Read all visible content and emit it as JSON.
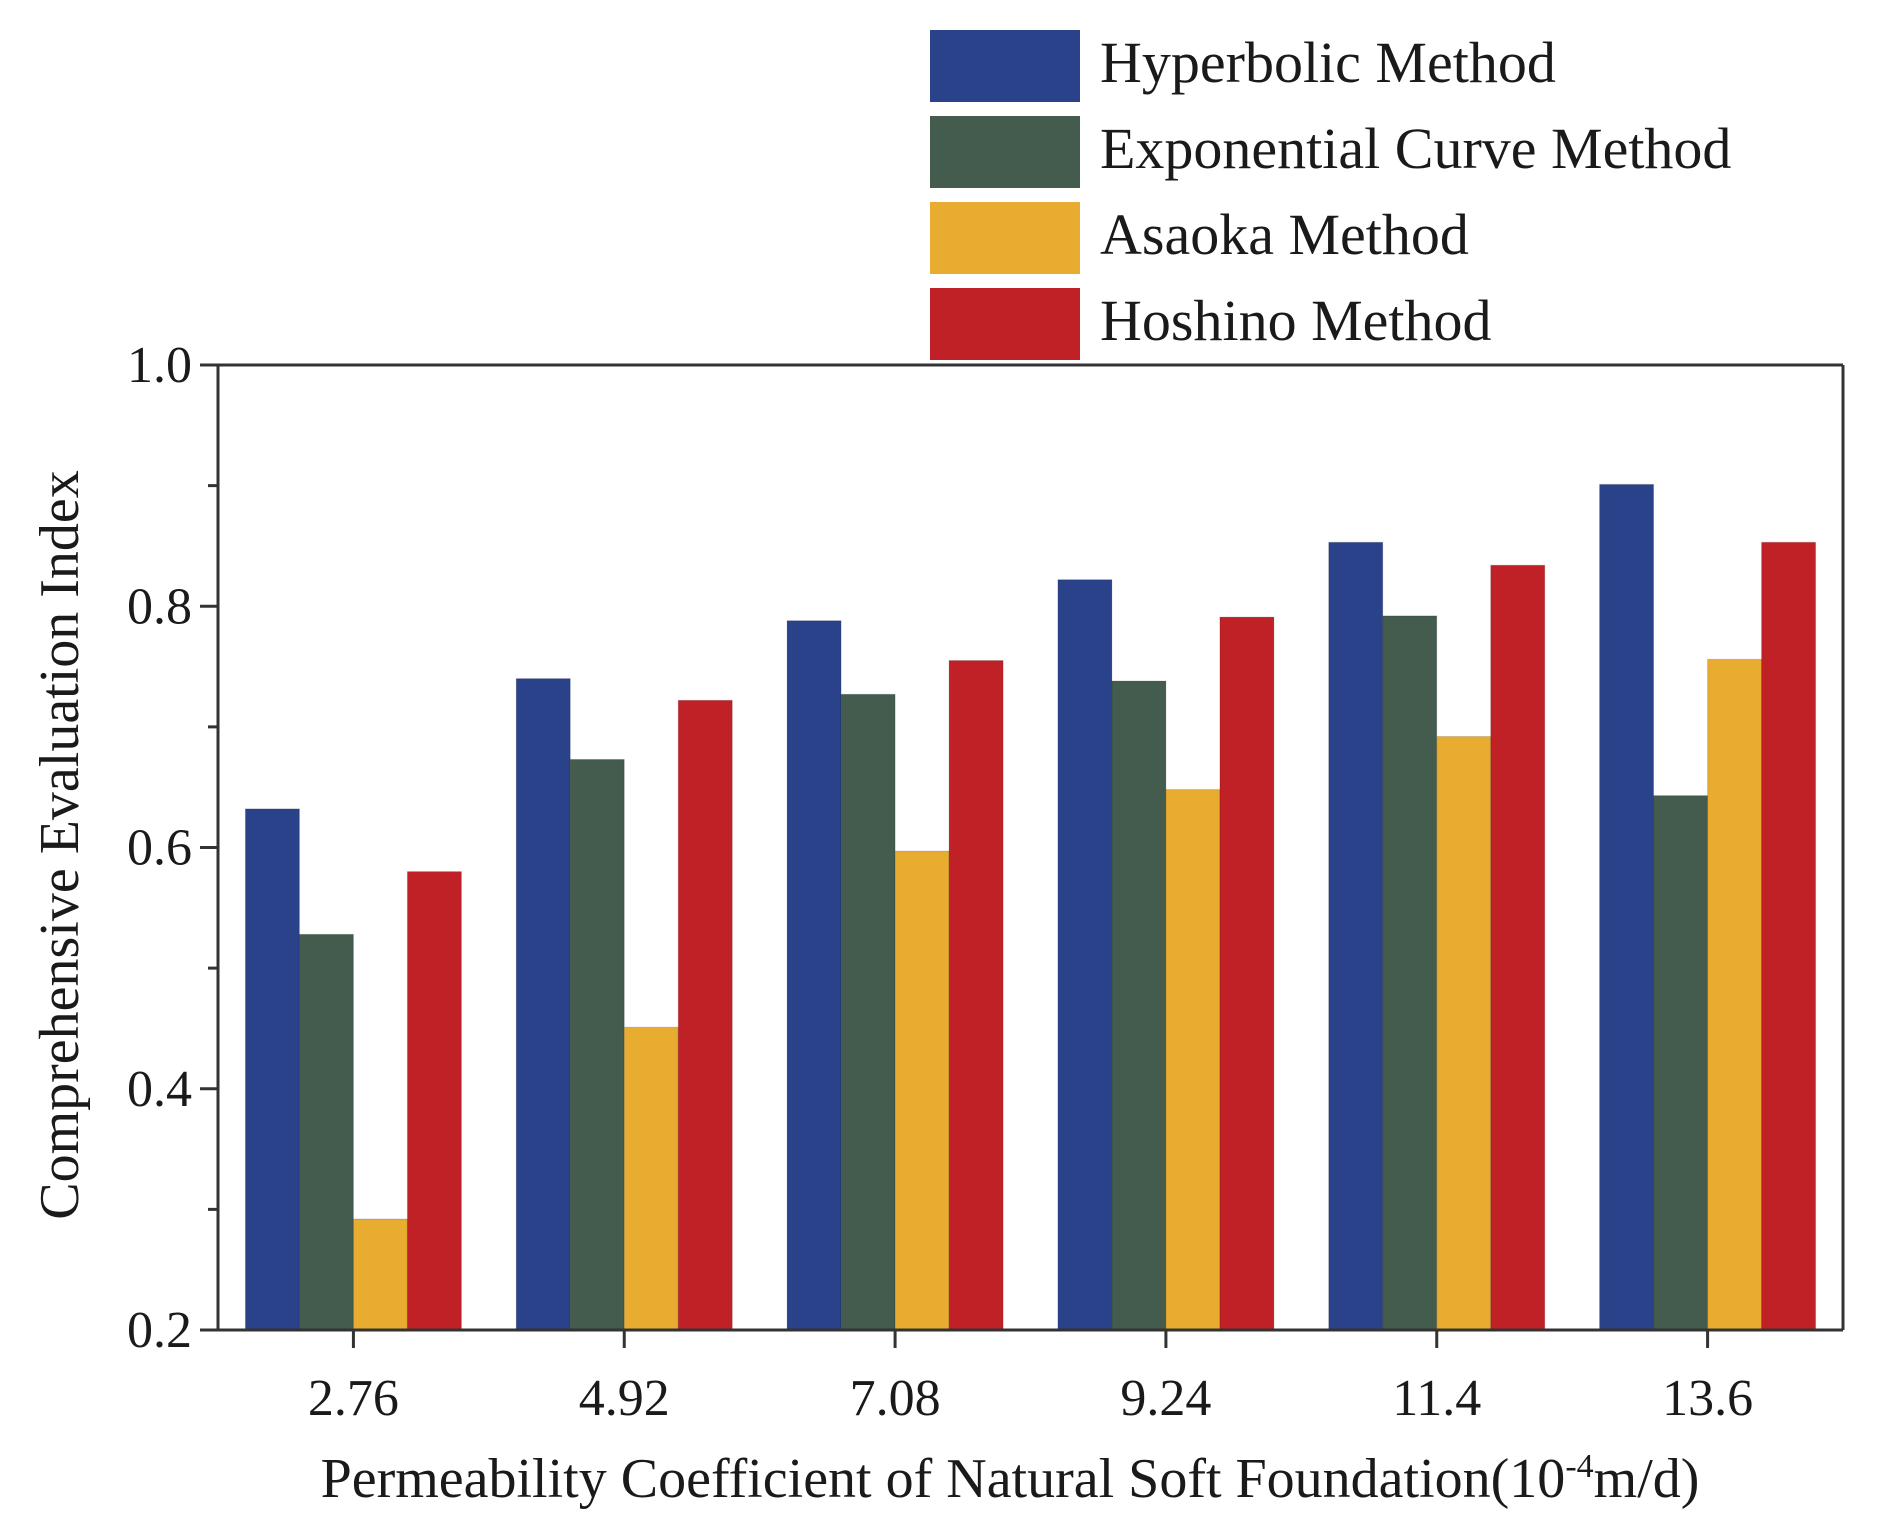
{
  "chart_data": {
    "type": "bar",
    "title": "",
    "xlabel": "Permeability Coefficient of Natural Soft Foundation",
    "xlabel_unit_prefix": "(10",
    "xlabel_unit_exponent": "-4",
    "xlabel_unit_suffix": "m/d)",
    "ylabel": "Comprehensive Evaluation Index",
    "ylim": [
      0.2,
      1.0
    ],
    "yticks": [
      0.2,
      0.4,
      0.6,
      0.8,
      1.0
    ],
    "ytick_labels": [
      "0.2",
      "0.4",
      "0.6",
      "0.8",
      "1.0"
    ],
    "yminor_ticks": [
      0.3,
      0.5,
      0.7,
      0.9
    ],
    "categories": [
      "2.76",
      "4.92",
      "7.08",
      "9.24",
      "11.4",
      "13.6"
    ],
    "legend_position": "top-right, above plot",
    "grid": false,
    "series": [
      {
        "name": "Hyperbolic Method",
        "color": "#2a428a",
        "values": [
          0.632,
          0.74,
          0.788,
          0.822,
          0.853,
          0.901
        ]
      },
      {
        "name": "Exponential Curve Method",
        "color": "#435c4e",
        "values": [
          0.528,
          0.673,
          0.727,
          0.738,
          0.792,
          0.643
        ]
      },
      {
        "name": "Asaoka Method",
        "color": "#e8ad30",
        "values": [
          0.292,
          0.451,
          0.597,
          0.648,
          0.692,
          0.756
        ]
      },
      {
        "name": "Hoshino Method",
        "color": "#c02126",
        "values": [
          0.58,
          0.722,
          0.755,
          0.791,
          0.834,
          0.853
        ]
      }
    ]
  }
}
